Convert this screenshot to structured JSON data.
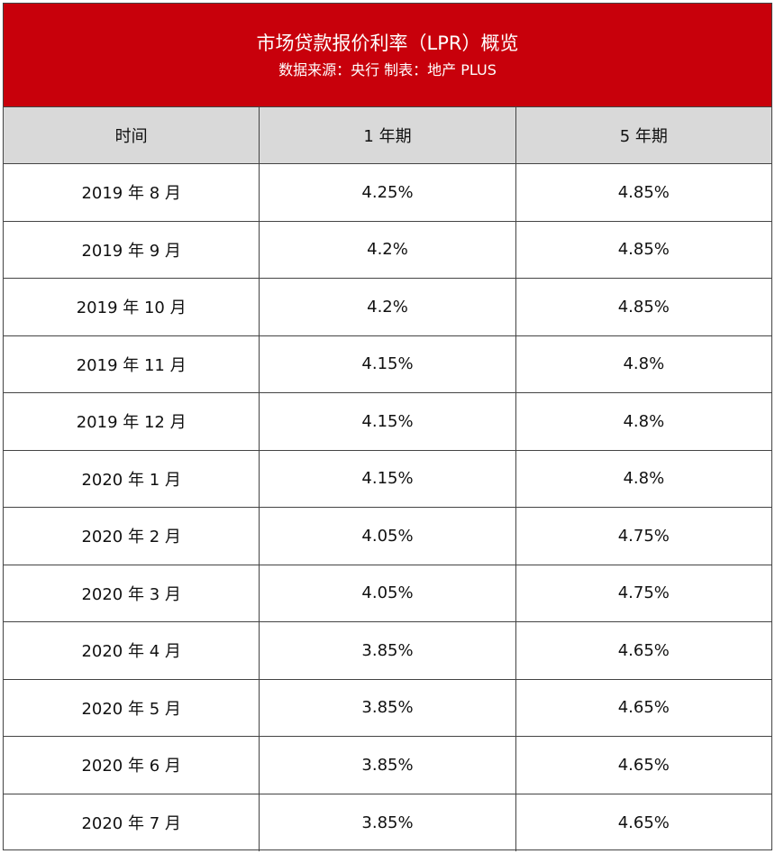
{
  "header": {
    "title": "市场贷款报价利率（LPR）概览",
    "subtitle": "数据来源：央行 制表：地产 PLUS"
  },
  "table": {
    "columns": [
      "时间",
      "1 年期",
      "5 年期"
    ],
    "rows": [
      [
        "2019 年 8 月",
        "4.25%",
        "4.85%"
      ],
      [
        "2019 年 9 月",
        "4.2%",
        "4.85%"
      ],
      [
        "2019 年 10 月",
        "4.2%",
        "4.85%"
      ],
      [
        "2019 年 11 月",
        "4.15%",
        "4.8%"
      ],
      [
        "2019 年 12 月",
        "4.15%",
        "4.8%"
      ],
      [
        "2020 年 1 月",
        "4.15%",
        "4.8%"
      ],
      [
        "2020 年 2 月",
        "4.05%",
        "4.75%"
      ],
      [
        "2020 年 3 月",
        "4.05%",
        "4.75%"
      ],
      [
        "2020 年 4 月",
        "3.85%",
        "4.65%"
      ],
      [
        "2020 年 5 月",
        "3.85%",
        "4.65%"
      ],
      [
        "2020 年 6 月",
        "3.85%",
        "4.65%"
      ],
      [
        "2020 年 7 月",
        "3.85%",
        "4.65%"
      ]
    ]
  }
}
